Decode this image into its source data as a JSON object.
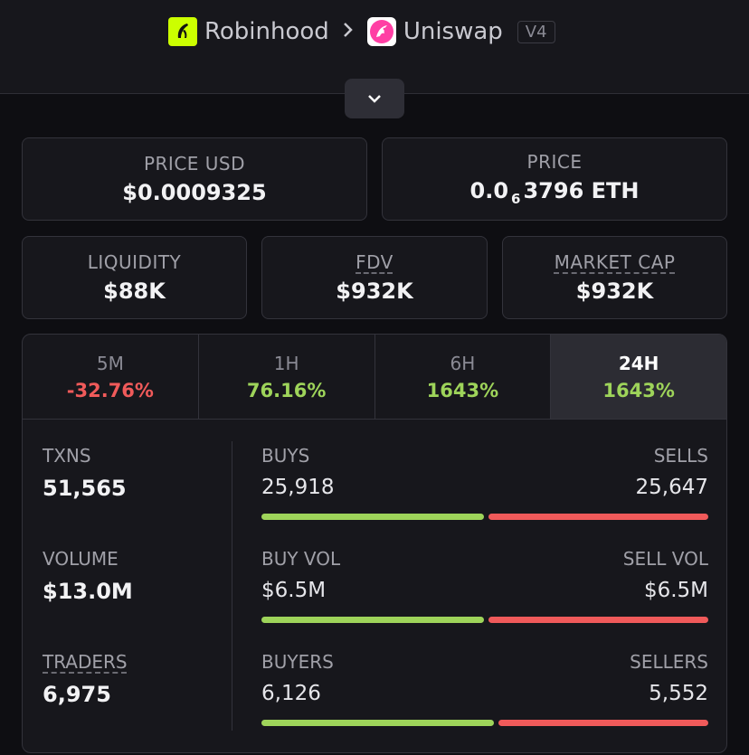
{
  "header": {
    "breadcrumb": {
      "chain": "Robinhood",
      "dex": "Uniswap",
      "version": "V4"
    }
  },
  "toggle": {
    "icon": "chevron-down-icon"
  },
  "price_usd": {
    "label": "PRICE USD",
    "value": "$0.0009325"
  },
  "price": {
    "label": "PRICE",
    "prefix": "0.0",
    "zeros": "6",
    "suffix": "3796 ETH"
  },
  "liquidity": {
    "label": "LIQUIDITY",
    "value": "$88K"
  },
  "fdv": {
    "label": "FDV",
    "value": "$932K"
  },
  "market_cap": {
    "label": "MARKET CAP",
    "value": "$932K"
  },
  "tabs": [
    {
      "label": "5M",
      "value": "-32.76%"
    },
    {
      "label": "1H",
      "value": "76.16%"
    },
    {
      "label": "6H",
      "value": "1643%"
    },
    {
      "label": "24H",
      "value": "1643%"
    }
  ],
  "stats": {
    "txns": {
      "label": "TXNS",
      "value": "51,565"
    },
    "volume": {
      "label": "VOLUME",
      "value": "$13.0M"
    },
    "traders": {
      "label": "TRADERS",
      "value": "6,975"
    }
  },
  "bars": {
    "txns": {
      "buy_label": "BUYS",
      "buy_value": "25,918",
      "sell_label": "SELLS",
      "sell_value": "25,647",
      "buy_ratio": 0.503
    },
    "volume": {
      "buy_label": "BUY VOL",
      "buy_value": "$6.5M",
      "sell_label": "SELL VOL",
      "sell_value": "$6.5M",
      "buy_ratio": 0.503
    },
    "traders": {
      "buy_label": "BUYERS",
      "buy_value": "6,126",
      "sell_label": "SELLERS",
      "sell_value": "5,552",
      "buy_ratio": 0.525
    }
  },
  "colors": {
    "positive": "#9ed45a",
    "negative": "#f05a5a",
    "robinhood": "#ccff00"
  }
}
